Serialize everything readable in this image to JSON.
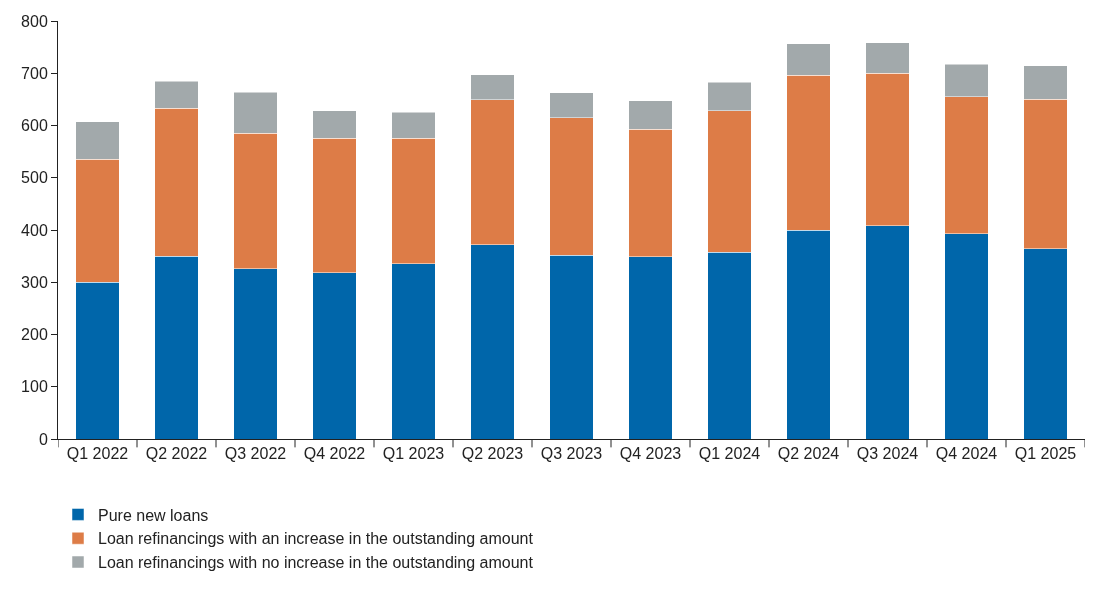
{
  "chart_data": {
    "type": "bar",
    "stacked": true,
    "categories": [
      "Q1 2022",
      "Q2 2022",
      "Q3 2022",
      "Q4 2022",
      "Q1 2023",
      "Q2 2023",
      "Q3 2023",
      "Q4 2023",
      "Q1 2024",
      "Q2 2024",
      "Q3 2024",
      "Q4 2024",
      "Q1 2025"
    ],
    "series": [
      {
        "name": "Pure new loans",
        "color": "#0066aa",
        "values": [
          300,
          350,
          326,
          318,
          335,
          372,
          352,
          349,
          357,
          400,
          408,
          393,
          364
        ]
      },
      {
        "name": "Loan refinancings with an increase in the outstanding amount",
        "color": "#dd7c47",
        "values": [
          235,
          283,
          259,
          258,
          241,
          277,
          263,
          244,
          271,
          296,
          292,
          262,
          286
        ]
      },
      {
        "name": "Loan refinancings with no increase in the outstanding amount",
        "color": "#a2a9ab",
        "values": [
          72,
          52,
          79,
          52,
          49,
          48,
          48,
          54,
          55,
          60,
          58,
          62,
          64
        ]
      }
    ],
    "ylim": [
      0,
      800
    ],
    "yticks": [
      0,
      100,
      200,
      300,
      400,
      500,
      600,
      700,
      800
    ],
    "legend": "bottom left"
  }
}
